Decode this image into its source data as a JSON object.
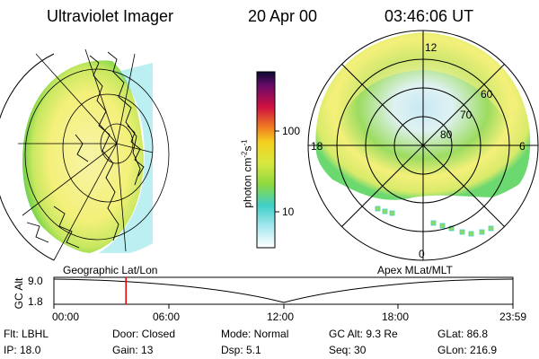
{
  "header": {
    "instrument": "Ultraviolet Imager",
    "date": "20 Apr 00",
    "time": "03:46:06 UT"
  },
  "colorbar": {
    "unit": "photon cm",
    "unit_exp1": "-2",
    "unit_mid": "s",
    "unit_exp2": "-1",
    "ticks": [
      "100",
      "10"
    ]
  },
  "polar_plot": {
    "mlt_labels": [
      "12",
      "18",
      "6",
      "0"
    ],
    "mlat_labels": [
      "60",
      "70",
      "80"
    ]
  },
  "projections": {
    "left": "Geographic Lat/Lon",
    "right": "Apex MLat/MLT"
  },
  "altitude_plot": {
    "axis_label": "GC Alt",
    "y_ticks": [
      "9.0",
      "1.8"
    ],
    "x_ticks": [
      "00:00",
      "06:00",
      "12:00",
      "18:00",
      "23:59"
    ],
    "current_time_fraction": 0.157
  },
  "info": {
    "flt": "Flt: LBHL",
    "door": "Door: Closed",
    "mode": "Mode: Normal",
    "gc_alt": "GC Alt: 9.3 Re",
    "glat": "GLat:  86.8",
    "ip": "IP: 18.0",
    "gain": "Gain: 13",
    "dsp": "Dsp:    5.1",
    "seq": "Seq: 30",
    "glon": "GLon: 216.9"
  },
  "colors": {
    "aurora_yellow": "#f4f07a",
    "aurora_green": "#9bd850",
    "aurora_cyan": "#3fd0d8",
    "alt_marker": "#e00000"
  }
}
